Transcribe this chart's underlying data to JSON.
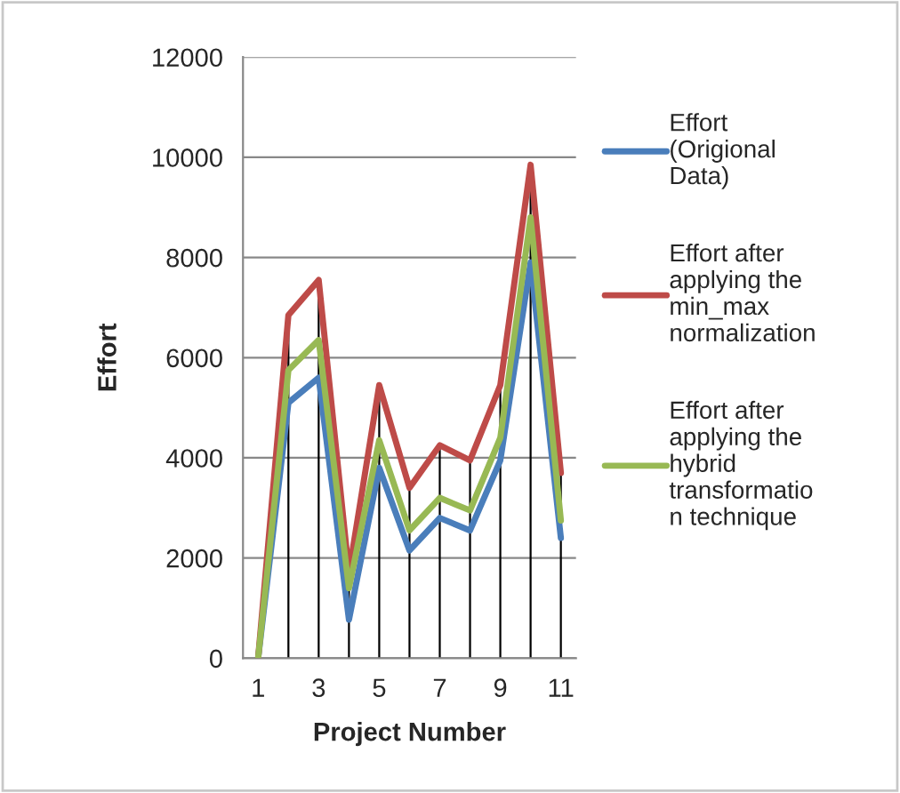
{
  "chart_data": {
    "type": "line",
    "xlabel": "Project Number",
    "ylabel": "Effort",
    "categories": [
      "1",
      null,
      "3",
      null,
      "5",
      null,
      "7",
      null,
      "9",
      null,
      "11"
    ],
    "series": [
      {
        "name": "Effort\n(Origional\nData)",
        "color": "#4a7ebb",
        "values": [
          0,
          5100,
          5600,
          770,
          3800,
          2150,
          2800,
          2550,
          3950,
          7900,
          2400
        ]
      },
      {
        "name": "Effort after\napplying the\nmin_max\nnormalization",
        "color": "#be4b48",
        "values": [
          0,
          6850,
          7550,
          1700,
          5450,
          3400,
          4250,
          3950,
          5450,
          9850,
          3700
        ],
        "errors": [
          null,
          [
            0,
            6850
          ],
          [
            0,
            7550
          ],
          [
            0,
            1700
          ],
          [
            0,
            5450
          ],
          [
            0,
            3400
          ],
          [
            0,
            4250
          ],
          [
            0,
            3950
          ],
          [
            0,
            5450
          ],
          [
            0,
            9850
          ],
          [
            0,
            3700
          ]
        ]
      },
      {
        "name": "Effort after\napplying the\nhybrid\ntransformatio\nn technique",
        "color": "#98b954",
        "values": [
          0,
          5750,
          6350,
          1400,
          4350,
          2550,
          3200,
          2950,
          4400,
          8800,
          2750
        ]
      }
    ],
    "ylim": [
      0,
      12000
    ],
    "yticks": [
      0,
      2000,
      4000,
      6000,
      8000,
      10000,
      12000
    ],
    "grid": "y",
    "legend": "right",
    "marker": "none",
    "line_style": "solid"
  }
}
